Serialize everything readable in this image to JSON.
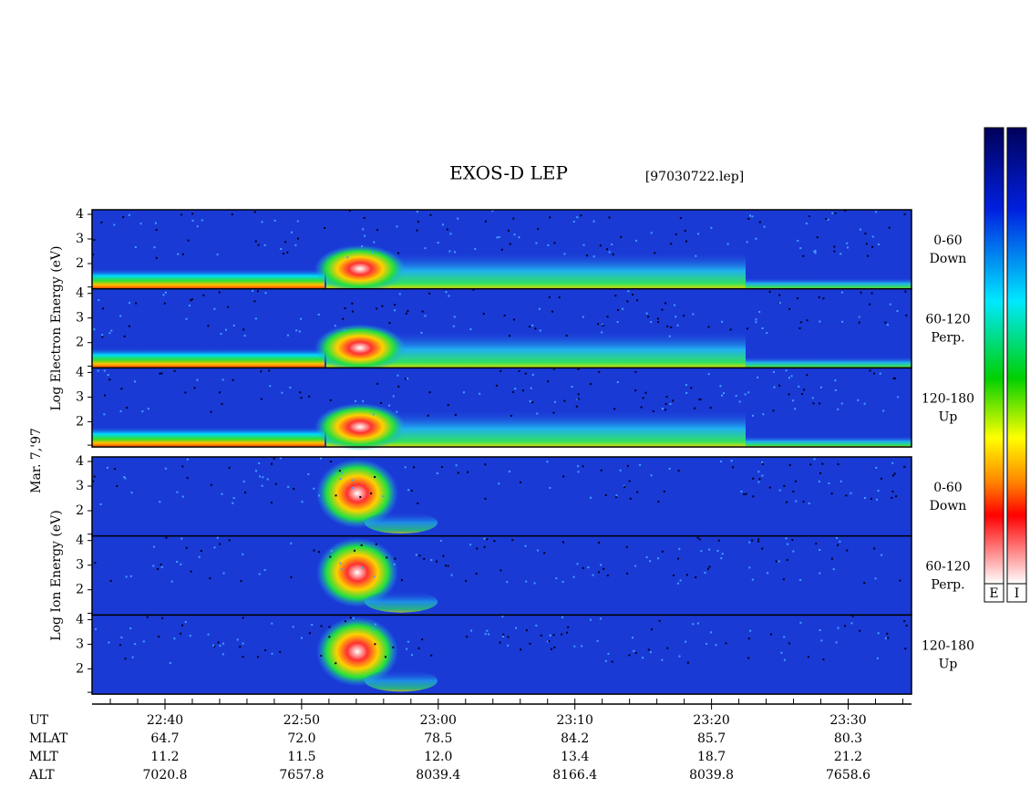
{
  "title": "EXOS-D LEP",
  "file": "[97030722.lep]",
  "date": "Mar. 7,'97",
  "groups": [
    {
      "axis_label": "Log Electron Energy (eV)",
      "yticks": [
        "4",
        "3",
        "2"
      ],
      "panels": [
        {
          "angle": "0-60",
          "direction": "Down"
        },
        {
          "angle": "60-120",
          "direction": "Perp."
        },
        {
          "angle": "120-180",
          "direction": "Up"
        }
      ]
    },
    {
      "axis_label": "Log Ion Energy (eV)",
      "yticks": [
        "4",
        "3",
        "2"
      ],
      "panels": [
        {
          "angle": "0-60",
          "direction": "Down"
        },
        {
          "angle": "60-120",
          "direction": "Perp."
        },
        {
          "angle": "120-180",
          "direction": "Up"
        }
      ]
    }
  ],
  "colorbars": [
    "E",
    "I"
  ],
  "time_axis": {
    "name": "UT",
    "labels": [
      "22:40",
      "22:50",
      "23:00",
      "23:10",
      "23:20",
      "23:30"
    ]
  },
  "ephemeris": [
    {
      "name": "MLAT",
      "values": [
        "64.7",
        "72.0",
        "78.5",
        "84.2",
        "85.7",
        "80.3"
      ]
    },
    {
      "name": "MLT",
      "values": [
        "11.2",
        "11.5",
        "12.0",
        "13.4",
        "18.7",
        "21.2"
      ]
    },
    {
      "name": "ALT",
      "values": [
        "7020.8",
        "7657.8",
        "8039.4",
        "8166.4",
        "8039.8",
        "7658.6"
      ]
    }
  ]
}
